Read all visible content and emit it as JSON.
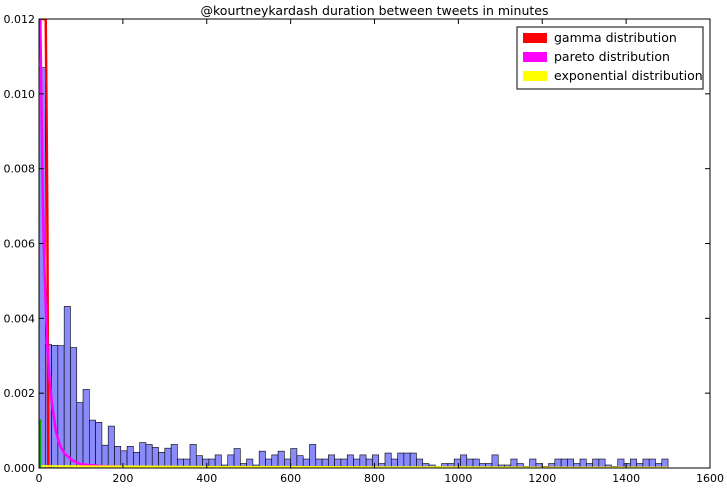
{
  "chart_data": {
    "type": "histogram",
    "title": "@kourtneykardash duration between tweets in minutes",
    "xlabel": "",
    "ylabel": "",
    "xlim": [
      0,
      1600
    ],
    "ylim": [
      0,
      0.012
    ],
    "x_ticks": [
      0,
      200,
      400,
      600,
      800,
      1000,
      1200,
      1400,
      1600
    ],
    "y_ticks": [
      0.0,
      0.002,
      0.004,
      0.006,
      0.008,
      0.01,
      0.012
    ],
    "grid": false,
    "legend_position": "top-right",
    "bin_width": 15,
    "histogram": {
      "color": "#7d7dfa",
      "values": [
        0.0107,
        0.0033,
        0.00328,
        0.00327,
        0.00432,
        0.00322,
        0.00175,
        0.0021,
        0.00128,
        0.00122,
        0.00061,
        0.00112,
        0.00058,
        0.00046,
        0.00058,
        0.00042,
        0.00068,
        0.00063,
        0.00055,
        0.00042,
        0.00053,
        0.00063,
        0.00024,
        0.00024,
        0.00063,
        0.00033,
        0.00024,
        0.00024,
        0.00035,
        8e-05,
        0.00035,
        0.00052,
        0.00012,
        0.00024,
        8e-05,
        0.00045,
        0.00024,
        0.00035,
        0.00045,
        0.00024,
        0.00052,
        0.00033,
        0.00024,
        0.00063,
        0.00024,
        0.00024,
        0.00035,
        0.00024,
        0.00024,
        0.00035,
        0.00024,
        0.00035,
        0.00024,
        0.00035,
        0.00012,
        0.0004,
        0.00024,
        0.0004,
        0.0004,
        0.0004,
        0.00024,
        0.00012,
        8e-05,
        4e-05,
        0.00012,
        0.00012,
        0.00024,
        0.00035,
        0.00024,
        0.00024,
        0.00012,
        0.00012,
        0.00035,
        8e-05,
        8e-05,
        0.00024,
        0.00012,
        4e-05,
        0.00024,
        0.00012,
        4e-05,
        0.00012,
        0.00024,
        0.00024,
        0.00024,
        0.00012,
        0.00024,
        0.00012,
        0.00024,
        0.00024,
        8e-05,
        4e-05,
        0.00024,
        0.00012,
        0.00024,
        0.00012,
        0.00024,
        0.00024,
        0.00012,
        0.00024
      ]
    },
    "series": [
      {
        "name": "gamma distribution",
        "color": "#ff0000",
        "x": [
          0,
          2,
          4,
          6,
          8,
          10,
          12,
          14,
          16,
          18,
          20,
          22
        ],
        "y": [
          0.012,
          0.012,
          0.012,
          0.012,
          0.012,
          0.012,
          0.012,
          0.012,
          0.012,
          0.0095,
          0.0065,
          0.0
        ]
      },
      {
        "name": "pareto distribution",
        "color": "#ff00ff",
        "x": [
          3,
          5,
          8,
          12,
          16,
          20,
          25,
          30,
          40,
          50,
          60,
          80,
          100,
          150,
          200,
          300,
          500,
          800,
          1200,
          1500
        ],
        "y": [
          0.012,
          0.0105,
          0.0078,
          0.0057,
          0.0043,
          0.0032,
          0.0024,
          0.0018,
          0.001,
          0.0006,
          0.0004,
          0.0002,
          0.0001,
          5e-05,
          3e-05,
          1e-05,
          0.0,
          0.0,
          0.0,
          0.0
        ]
      },
      {
        "name": "exponential distribution",
        "color": "#ffff00",
        "x": [
          0,
          200,
          400,
          600,
          800,
          1000,
          1200,
          1400,
          1500
        ],
        "y": [
          5e-05,
          4e-05,
          3e-05,
          3e-05,
          2e-05,
          2e-05,
          1e-05,
          1e-05,
          1e-05
        ]
      }
    ]
  }
}
